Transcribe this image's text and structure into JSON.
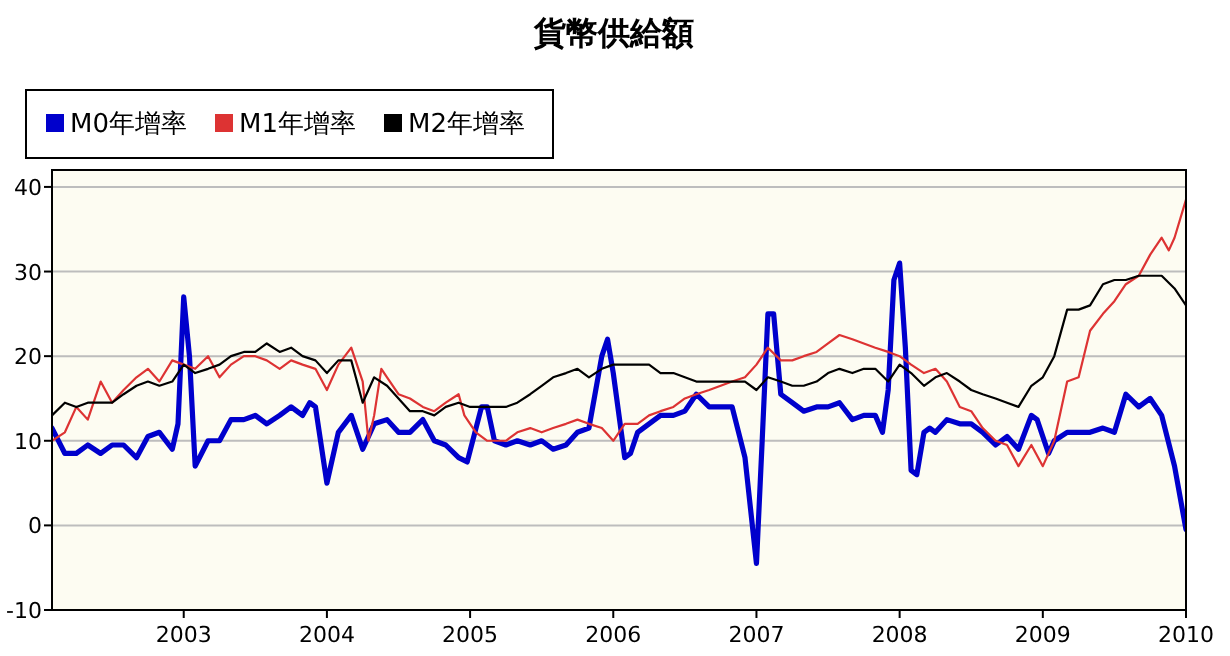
{
  "chart_data": {
    "type": "line",
    "title": "貨幣供給額",
    "xlim": [
      2002.08,
      2010
    ],
    "xticks": [
      2003,
      2004,
      2005,
      2006,
      2007,
      2008,
      2009,
      2010
    ],
    "ylim": [
      -10,
      42
    ],
    "yticks": [
      -10,
      0,
      10,
      20,
      30,
      40
    ],
    "grid": "y",
    "legend": "top left",
    "marker": "none",
    "line_style": "solid",
    "series": [
      {
        "name": "M0年增率",
        "color": "#0000cc",
        "x": [
          2002.08,
          2002.17,
          2002.25,
          2002.33,
          2002.42,
          2002.5,
          2002.58,
          2002.67,
          2002.75,
          2002.83,
          2002.92,
          2002.96,
          2003.0,
          2003.04,
          2003.08,
          2003.17,
          2003.25,
          2003.33,
          2003.42,
          2003.5,
          2003.58,
          2003.67,
          2003.75,
          2003.83,
          2003.88,
          2003.92,
          2004.0,
          2004.08,
          2004.17,
          2004.25,
          2004.33,
          2004.42,
          2004.5,
          2004.58,
          2004.67,
          2004.75,
          2004.83,
          2004.92,
          2004.98,
          2005.08,
          2005.12,
          2005.17,
          2005.25,
          2005.33,
          2005.42,
          2005.5,
          2005.58,
          2005.67,
          2005.75,
          2005.83,
          2005.92,
          2005.96,
          2006.0,
          2006.08,
          2006.12,
          2006.17,
          2006.25,
          2006.33,
          2006.42,
          2006.5,
          2006.58,
          2006.67,
          2006.75,
          2006.83,
          2006.92,
          2007.0,
          2007.04,
          2007.08,
          2007.12,
          2007.17,
          2007.25,
          2007.33,
          2007.42,
          2007.5,
          2007.58,
          2007.67,
          2007.75,
          2007.83,
          2007.88,
          2007.92,
          2007.96,
          2008.0,
          2008.04,
          2008.08,
          2008.12,
          2008.17,
          2008.21,
          2008.25,
          2008.33,
          2008.42,
          2008.5,
          2008.58,
          2008.67,
          2008.75,
          2008.83,
          2008.92,
          2008.96,
          2009.04,
          2009.08,
          2009.17,
          2009.25,
          2009.33,
          2009.42,
          2009.5,
          2009.58,
          2009.67,
          2009.75,
          2009.83,
          2009.92,
          2010.0
        ],
        "values": [
          11.5,
          8.5,
          8.5,
          9.5,
          8.5,
          9.5,
          9.5,
          8,
          10.5,
          11,
          9,
          12,
          27,
          20,
          7,
          10,
          10,
          12.5,
          12.5,
          13,
          12,
          13,
          14,
          13,
          14.5,
          14,
          5,
          11,
          13,
          9,
          12,
          12.5,
          11,
          11,
          12.5,
          10,
          9.5,
          8,
          7.5,
          14,
          14,
          10,
          9.5,
          10,
          9.5,
          10,
          9,
          9.5,
          11,
          11.5,
          20,
          22,
          18,
          8,
          8.5,
          11,
          12,
          13,
          13,
          13.5,
          15.5,
          14,
          14,
          14,
          8,
          -4.5,
          10,
          25,
          25,
          15.5,
          14.5,
          13.5,
          14,
          14,
          14.5,
          12.5,
          13,
          13,
          11,
          16,
          29,
          31,
          21,
          6.5,
          6,
          11,
          11.5,
          11,
          12.5,
          12,
          12,
          11,
          9.5,
          10.5,
          9,
          13,
          12.5,
          8.5,
          10,
          11,
          11,
          11,
          11.5,
          11,
          15.5,
          14,
          15,
          13,
          7,
          -0.5
        ]
      },
      {
        "name": "M1年增率",
        "color": "#dd3333",
        "x": [
          2002.08,
          2002.17,
          2002.25,
          2002.33,
          2002.42,
          2002.5,
          2002.58,
          2002.67,
          2002.75,
          2002.83,
          2002.92,
          2003.0,
          2003.08,
          2003.17,
          2003.25,
          2003.33,
          2003.42,
          2003.5,
          2003.58,
          2003.67,
          2003.75,
          2003.83,
          2003.92,
          2004.0,
          2004.08,
          2004.17,
          2004.25,
          2004.29,
          2004.33,
          2004.38,
          2004.42,
          2004.5,
          2004.58,
          2004.67,
          2004.75,
          2004.83,
          2004.92,
          2004.96,
          2005.04,
          2005.12,
          2005.25,
          2005.33,
          2005.42,
          2005.5,
          2005.58,
          2005.67,
          2005.75,
          2005.83,
          2005.92,
          2006.0,
          2006.08,
          2006.17,
          2006.25,
          2006.33,
          2006.42,
          2006.5,
          2006.58,
          2006.67,
          2006.75,
          2006.83,
          2006.92,
          2007.0,
          2007.08,
          2007.17,
          2007.25,
          2007.33,
          2007.42,
          2007.5,
          2007.58,
          2007.67,
          2007.75,
          2007.83,
          2007.92,
          2008.0,
          2008.08,
          2008.17,
          2008.25,
          2008.33,
          2008.42,
          2008.5,
          2008.58,
          2008.67,
          2008.75,
          2008.83,
          2008.92,
          2009.0,
          2009.08,
          2009.17,
          2009.25,
          2009.33,
          2009.42,
          2009.5,
          2009.58,
          2009.67,
          2009.75,
          2009.83,
          2009.88,
          2009.92,
          2010.0
        ],
        "values": [
          10,
          11,
          14,
          12.5,
          17,
          14.5,
          16,
          17.5,
          18.5,
          17,
          19.5,
          19,
          18.5,
          20,
          17.5,
          19,
          20,
          20,
          19.5,
          18.5,
          19.5,
          19,
          18.5,
          16,
          19,
          21,
          17,
          10,
          13,
          18.5,
          17.5,
          15.5,
          15,
          14,
          13.5,
          14.5,
          15.5,
          13,
          11,
          10,
          10,
          11,
          11.5,
          11,
          11.5,
          12,
          12.5,
          12,
          11.5,
          10,
          12,
          12,
          13,
          13.5,
          14,
          15,
          15.5,
          16,
          16.5,
          17,
          17.5,
          19,
          21,
          19.5,
          19.5,
          20,
          20.5,
          21.5,
          22.5,
          22,
          21.5,
          21,
          20.5,
          20,
          19,
          18,
          18.5,
          17,
          14,
          13.5,
          11.5,
          10,
          9.5,
          7,
          9.5,
          7,
          10,
          17,
          17.5,
          23,
          25,
          26.5,
          28.5,
          29.5,
          32,
          34,
          32.5,
          34,
          38.5
        ]
      },
      {
        "name": "M2年增率",
        "color": "#000000",
        "x": [
          2002.08,
          2002.17,
          2002.25,
          2002.33,
          2002.5,
          2002.58,
          2002.67,
          2002.75,
          2002.83,
          2002.92,
          2003.0,
          2003.08,
          2003.17,
          2003.25,
          2003.33,
          2003.42,
          2003.5,
          2003.58,
          2003.67,
          2003.75,
          2003.83,
          2003.92,
          2004.0,
          2004.08,
          2004.17,
          2004.25,
          2004.33,
          2004.42,
          2004.5,
          2004.58,
          2004.67,
          2004.75,
          2004.83,
          2004.92,
          2005.0,
          2005.08,
          2005.17,
          2005.25,
          2005.33,
          2005.42,
          2005.5,
          2005.58,
          2005.67,
          2005.75,
          2005.83,
          2005.92,
          2006.0,
          2006.08,
          2006.17,
          2006.25,
          2006.33,
          2006.42,
          2006.5,
          2006.58,
          2006.67,
          2006.75,
          2006.83,
          2006.92,
          2007.0,
          2007.08,
          2007.17,
          2007.25,
          2007.33,
          2007.42,
          2007.5,
          2007.58,
          2007.67,
          2007.75,
          2007.83,
          2007.92,
          2008.0,
          2008.08,
          2008.17,
          2008.25,
          2008.33,
          2008.42,
          2008.5,
          2008.58,
          2008.67,
          2008.75,
          2008.83,
          2008.92,
          2009.0,
          2009.08,
          2009.17,
          2009.25,
          2009.33,
          2009.42,
          2009.5,
          2009.58,
          2009.67,
          2009.75,
          2009.83,
          2009.92,
          2010.0
        ],
        "values": [
          13,
          14.5,
          14,
          14.5,
          14.5,
          15.5,
          16.5,
          17,
          16.5,
          17,
          19,
          18,
          18.5,
          19,
          20,
          20.5,
          20.5,
          21.5,
          20.5,
          21,
          20,
          19.5,
          18,
          19.5,
          19.5,
          14.5,
          17.5,
          16.5,
          15,
          13.5,
          13.5,
          13,
          14,
          14.5,
          14,
          14,
          14,
          14,
          14.5,
          15.5,
          16.5,
          17.5,
          18,
          18.5,
          17.5,
          18.5,
          19,
          19,
          19,
          19,
          18,
          18,
          17.5,
          17,
          17,
          17,
          17,
          17,
          16,
          17.5,
          17,
          16.5,
          16.5,
          17,
          18,
          18.5,
          18,
          18.5,
          18.5,
          17,
          19,
          18,
          16.5,
          17.5,
          18,
          17,
          16,
          15.5,
          15,
          14.5,
          14,
          16.5,
          17.5,
          20,
          25.5,
          25.5,
          26,
          28.5,
          29,
          29,
          29.5,
          29.5,
          29.5,
          28,
          26
        ]
      }
    ]
  }
}
